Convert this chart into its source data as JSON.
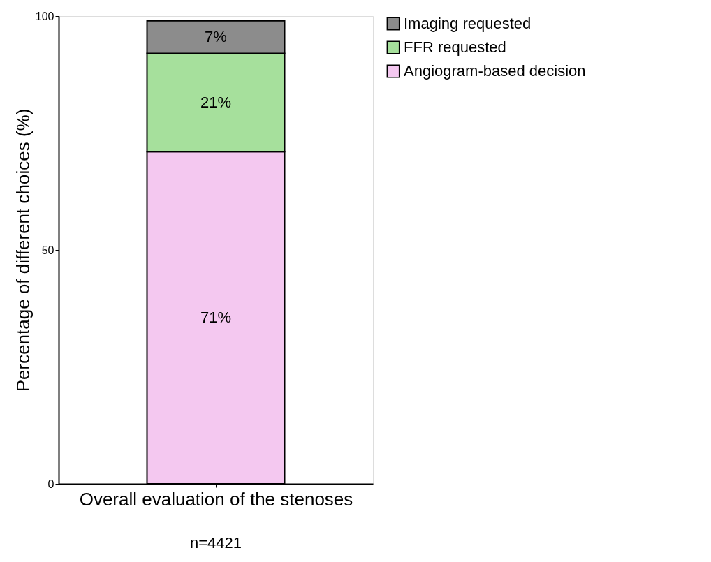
{
  "chart_data": {
    "type": "bar",
    "stacked": true,
    "categories": [
      null
    ],
    "xlabel": "Overall evaluation of the stenoses",
    "ylabel": "Percentage of different choices (%)",
    "series": [
      {
        "name": "Angiogram-based decision",
        "color": "#f4c8f0",
        "values": [
          71
        ],
        "value_labels": [
          "71%"
        ]
      },
      {
        "name": "FFR requested",
        "color": "#a6e09c",
        "values": [
          21
        ],
        "value_labels": [
          "21%"
        ]
      },
      {
        "name": "Imaging requested",
        "color": "#8c8c8c",
        "values": [
          7
        ],
        "value_labels": [
          "7%"
        ]
      }
    ],
    "ylim": [
      0,
      100
    ],
    "yticks": [
      0,
      50,
      100
    ],
    "grid": false,
    "legend": "top right",
    "tick_labels": "y",
    "annotations": [
      "n=4421"
    ]
  }
}
